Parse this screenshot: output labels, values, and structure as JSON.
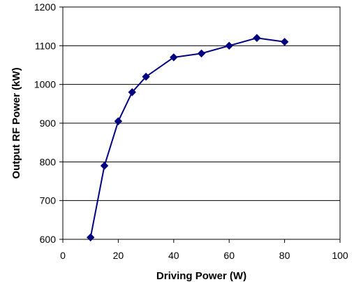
{
  "chart_data": {
    "type": "line",
    "title": "",
    "xlabel": "Driving Power (W)",
    "ylabel": "Output RF Power (kW)",
    "xlim": [
      0,
      100
    ],
    "ylim": [
      600,
      1200
    ],
    "xticks": [
      "0",
      "20",
      "40",
      "60",
      "80",
      "100"
    ],
    "yticks": [
      "600",
      "700",
      "800",
      "900",
      "1000",
      "1100",
      "1200"
    ],
    "grid": "horizontal",
    "legend": "none",
    "series": [
      {
        "color": "#000080",
        "marker": "diamond",
        "x": [
          10,
          15,
          20,
          25,
          30,
          40,
          50,
          60,
          70,
          80
        ],
        "y": [
          605,
          790,
          905,
          980,
          1020,
          1070,
          1080,
          1100,
          1120,
          1110
        ]
      }
    ]
  }
}
